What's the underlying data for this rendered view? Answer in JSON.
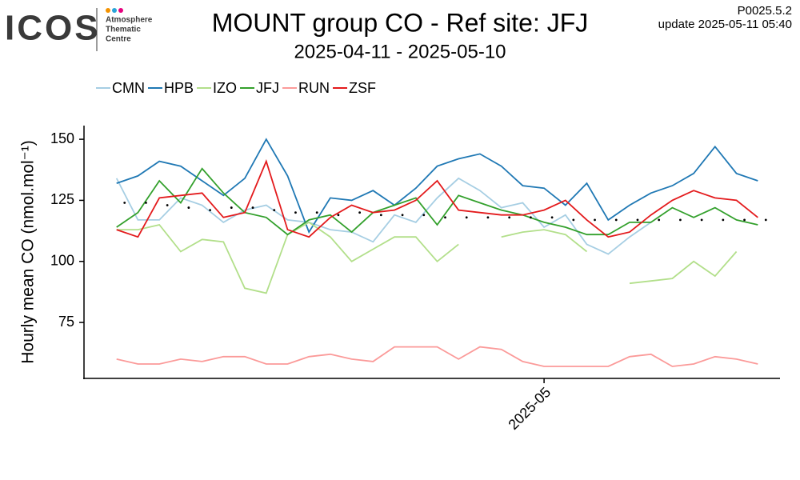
{
  "header": {
    "logo": "ICOS",
    "logo_sub": [
      "Atmosphere",
      "Thematic",
      "Centre"
    ],
    "version": "P0025.5.2",
    "update": "update  2025-05-11 05:40"
  },
  "chart_data": {
    "type": "line",
    "title": "MOUNT group CO - Ref site: JFJ",
    "subtitle": "2025-04-11 - 2025-05-10",
    "ylabel": "Hourly mean  CO (nmol.mol⁻¹)",
    "x": [
      "2025-04-11",
      "2025-04-12",
      "2025-04-13",
      "2025-04-14",
      "2025-04-15",
      "2025-04-16",
      "2025-04-17",
      "2025-04-18",
      "2025-04-19",
      "2025-04-20",
      "2025-04-21",
      "2025-04-22",
      "2025-04-23",
      "2025-04-24",
      "2025-04-25",
      "2025-04-26",
      "2025-04-27",
      "2025-04-28",
      "2025-04-29",
      "2025-04-30",
      "2025-05-01",
      "2025-05-02",
      "2025-05-03",
      "2025-05-04",
      "2025-05-05",
      "2025-05-06",
      "2025-05-07",
      "2025-05-08",
      "2025-05-09",
      "2025-05-10",
      "2025-05-11"
    ],
    "xlim": [
      "2025-04-10",
      "2025-05-12"
    ],
    "xticks": [
      {
        "value": "2025-05-01",
        "label": "2025-05"
      }
    ],
    "ylim": [
      52.1,
      155.6
    ],
    "yticks": [
      75,
      100,
      125,
      150
    ],
    "series": [
      {
        "name": "CMN",
        "color": "#a6cee3",
        "values": [
          134,
          117,
          117,
          126,
          123,
          116,
          121,
          123,
          117,
          116,
          113,
          112,
          108,
          119,
          116,
          126,
          134,
          129,
          122,
          124,
          114,
          119,
          107,
          103,
          110,
          116,
          null,
          null,
          null,
          null,
          null
        ]
      },
      {
        "name": "HPB",
        "color": "#1f78b4",
        "values": [
          132,
          135,
          141,
          139,
          133,
          127,
          134,
          150,
          135,
          112,
          126,
          125,
          129,
          123,
          130,
          139,
          142,
          144,
          139,
          131,
          130,
          123,
          132,
          117,
          123,
          128,
          131,
          136,
          147,
          136,
          133
        ]
      },
      {
        "name": "IZO",
        "color": "#b2df8a",
        "values": [
          113,
          113,
          115,
          104,
          109,
          108,
          89,
          87,
          111,
          116,
          110,
          100,
          105,
          110,
          110,
          100,
          107,
          null,
          110,
          112,
          113,
          111,
          104,
          null,
          91,
          92,
          93,
          100,
          94,
          104,
          null
        ]
      },
      {
        "name": "JFJ",
        "color": "#33a02c",
        "values": [
          114,
          120,
          133,
          124,
          138,
          128,
          120,
          118,
          111,
          117,
          119,
          112,
          120,
          123,
          126,
          115,
          127,
          124,
          121,
          119,
          116,
          114,
          111,
          111,
          116,
          116,
          122,
          118,
          122,
          117,
          115
        ]
      },
      {
        "name": "RUN",
        "color": "#fb9a99",
        "values": [
          60,
          58,
          58,
          60,
          59,
          61,
          61,
          58,
          58,
          61,
          62,
          60,
          59,
          65,
          65,
          65,
          60,
          65,
          64,
          59,
          57,
          57,
          57,
          57,
          61,
          62,
          57,
          58,
          61,
          60,
          58
        ]
      },
      {
        "name": "ZSF",
        "color": "#e31a1c",
        "values": [
          113,
          110,
          126,
          127,
          128,
          118,
          120,
          141,
          113,
          110,
          118,
          123,
          120,
          121,
          125,
          133,
          121,
          120,
          119,
          119,
          121,
          125,
          117,
          110,
          112,
          119,
          125,
          129,
          126,
          125,
          118
        ]
      }
    ],
    "reference": {
      "color": "#000000",
      "values": [
        124,
        124,
        123,
        122,
        121,
        122,
        122,
        121,
        120,
        120,
        119,
        120,
        119,
        119,
        119,
        118,
        118,
        118,
        118,
        118,
        118,
        117,
        117,
        117,
        117,
        117,
        117,
        117,
        117,
        117,
        117
      ]
    }
  }
}
